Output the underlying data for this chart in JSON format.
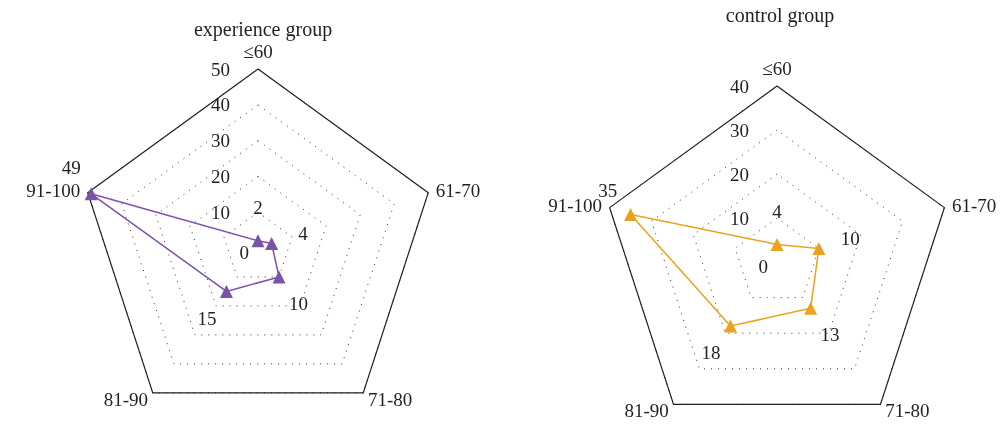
{
  "chart_data": [
    {
      "type": "radar",
      "title": "experience group",
      "categories": [
        "≤60",
        "61-70",
        "71-80",
        "81-90",
        "91-100"
      ],
      "series": [
        {
          "color": "#7b52a8",
          "values": [
            2,
            4,
            10,
            15,
            49
          ]
        }
      ],
      "ylim": [
        0,
        50
      ],
      "yticks": [
        0,
        10,
        20,
        30,
        40,
        50
      ],
      "grid": true,
      "marker": "triangle",
      "line_style": "solid",
      "data_labels": true
    },
    {
      "type": "radar",
      "title": "control group",
      "categories": [
        "≤60",
        "61-70",
        "71-80",
        "81-90",
        "91-100"
      ],
      "series": [
        {
          "color": "#eba21e",
          "values": [
            4,
            10,
            13,
            18,
            35
          ]
        }
      ],
      "ylim": [
        0,
        40
      ],
      "yticks": [
        0,
        10,
        20,
        30,
        40
      ],
      "grid": true,
      "marker": "triangle",
      "line_style": "solid",
      "data_labels": true
    }
  ]
}
